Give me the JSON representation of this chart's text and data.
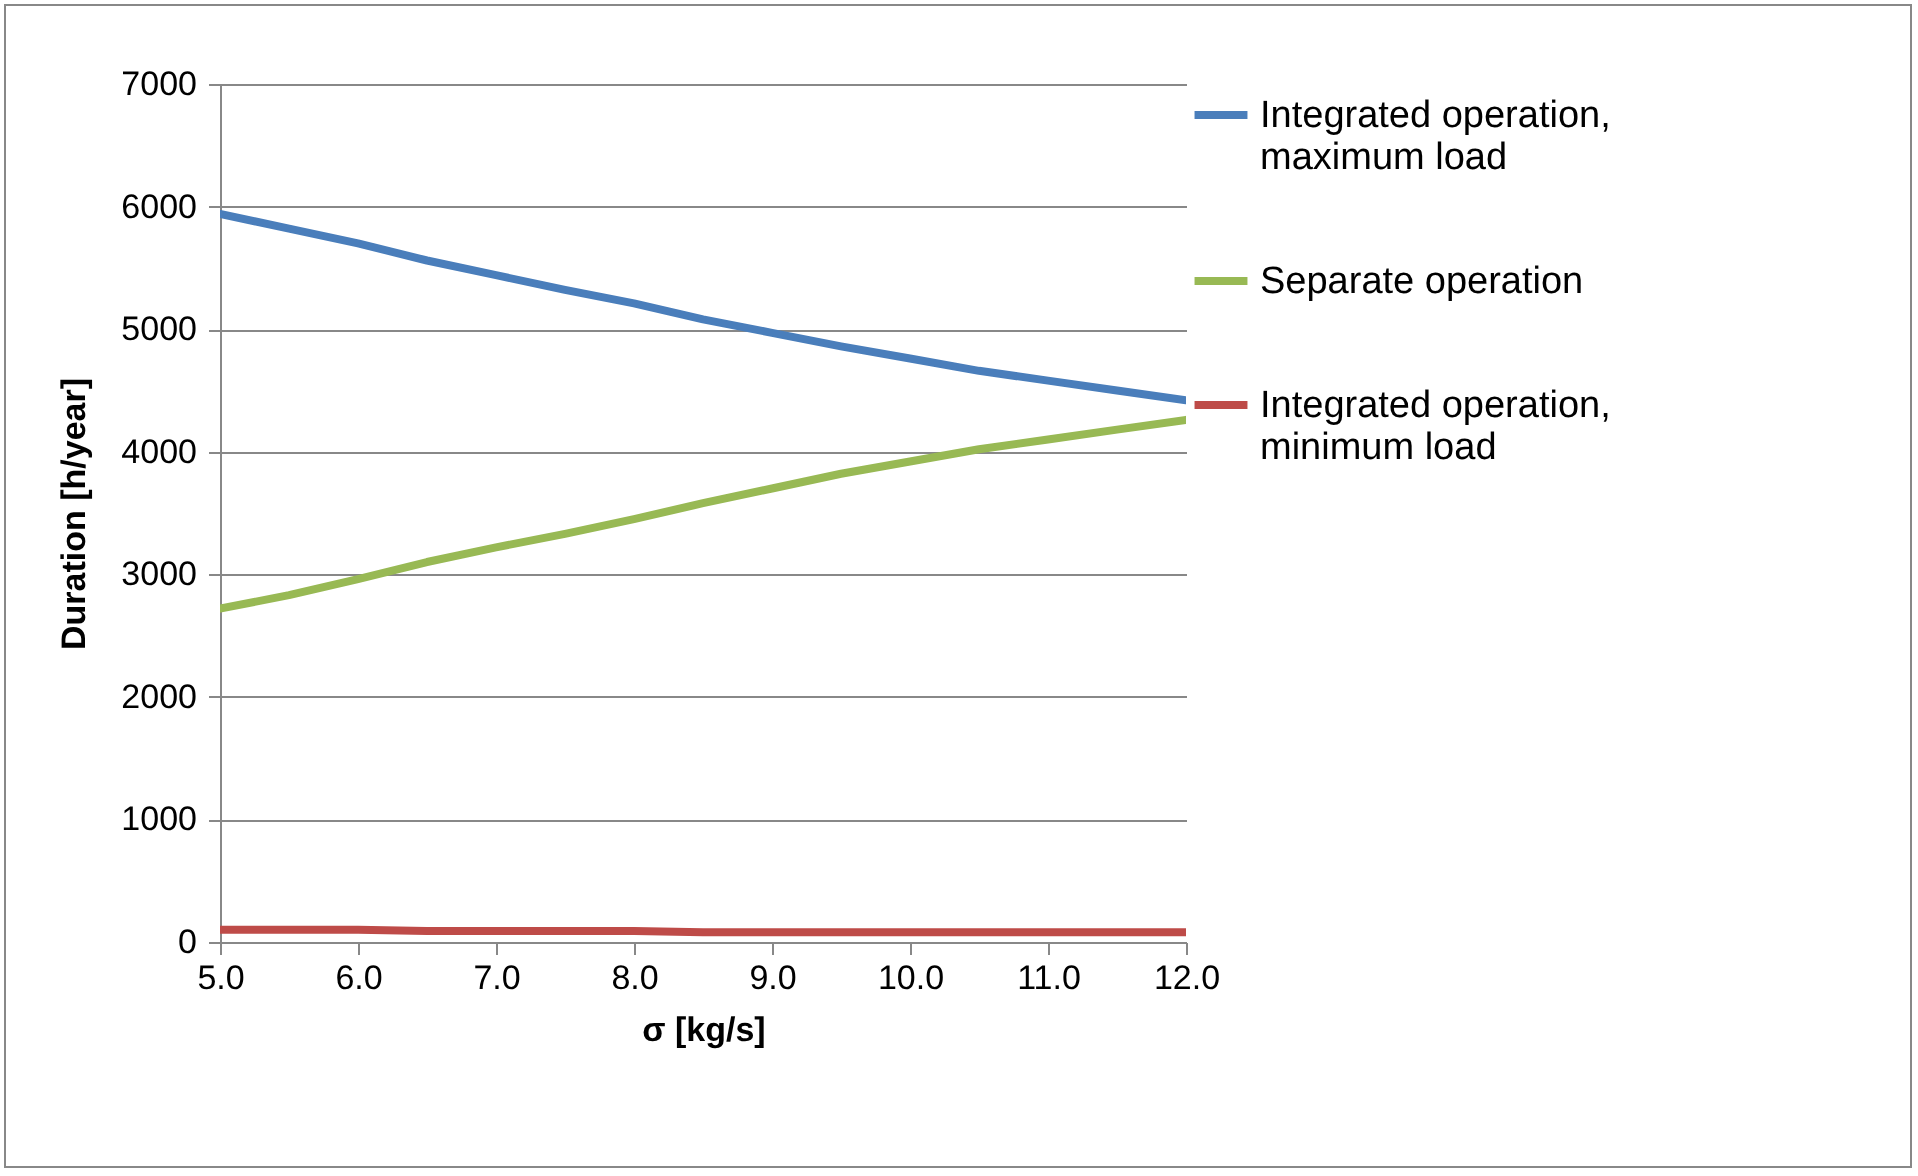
{
  "chart_data": {
    "type": "line",
    "xlabel": "σ [kg/s]",
    "ylabel": "Duration [h/year]",
    "x": [
      5.0,
      5.5,
      6.0,
      6.5,
      7.0,
      7.5,
      8.0,
      8.5,
      9.0,
      9.5,
      10.0,
      10.5,
      11.0,
      11.5,
      12.0
    ],
    "series": [
      {
        "name": "Integrated operation, maximum load",
        "color": "#4a7ebb",
        "values": [
          5940,
          5820,
          5700,
          5560,
          5440,
          5320,
          5210,
          5080,
          4970,
          4860,
          4760,
          4660,
          4580,
          4500,
          4420
        ]
      },
      {
        "name": "Separate operation",
        "color": "#98b954",
        "values": [
          2720,
          2830,
          2960,
          3100,
          3220,
          3330,
          3450,
          3580,
          3700,
          3820,
          3920,
          4020,
          4100,
          4180,
          4260
        ]
      },
      {
        "name": "Integrated operation, minimum load",
        "color": "#be4b48",
        "values": [
          100,
          100,
          100,
          90,
          90,
          90,
          90,
          80,
          80,
          80,
          80,
          80,
          80,
          80,
          80
        ]
      }
    ],
    "xlim": [
      5,
      12
    ],
    "xticks": [
      {
        "value": 5,
        "label": "5.0"
      },
      {
        "value": 6,
        "label": "6.0"
      },
      {
        "value": 7,
        "label": "7.0"
      },
      {
        "value": 8,
        "label": "8.0"
      },
      {
        "value": 9,
        "label": "9.0"
      },
      {
        "value": 10,
        "label": "10.0"
      },
      {
        "value": 11,
        "label": "11.0"
      },
      {
        "value": 12,
        "label": "12.0"
      }
    ],
    "ylim": [
      0,
      7000
    ],
    "yticks": [
      0,
      1000,
      2000,
      3000,
      4000,
      5000,
      6000,
      7000
    ],
    "grid": "y",
    "legend": "right",
    "marker": "none",
    "line_style": "solid"
  }
}
